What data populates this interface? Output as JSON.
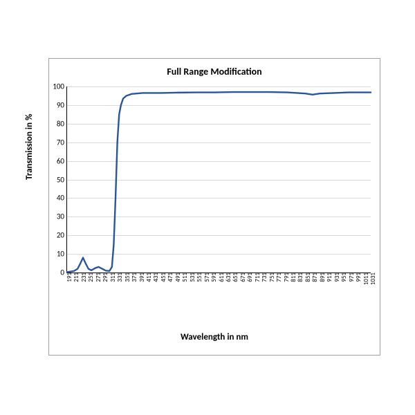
{
  "chart": {
    "type": "line",
    "title": "Full Range Modification",
    "xlabel": "Wavelength in nm",
    "ylabel": "Transmission in %",
    "title_fontsize": 14,
    "label_fontsize": 13,
    "tick_fontsize": 11,
    "background_color": "#ffffff",
    "border_color": "#a0a0a0",
    "axis_color": "#000000",
    "grid_color": "#d9d9d9",
    "line_color": "#2a5699",
    "line_width": 2.4,
    "y": {
      "min": 0,
      "max": 100,
      "ticks": [
        0,
        10,
        20,
        30,
        40,
        50,
        60,
        70,
        80,
        90,
        100
      ]
    },
    "x": {
      "min": 191,
      "max": 1031,
      "ticks": [
        191,
        211,
        231,
        251,
        271,
        291,
        311,
        331,
        351,
        371,
        391,
        411,
        431,
        451,
        471,
        491,
        511,
        531,
        551,
        571,
        591,
        611,
        631,
        651,
        671,
        691,
        711,
        731,
        751,
        771,
        791,
        811,
        831,
        851,
        871,
        891,
        911,
        931,
        951,
        971,
        991,
        1011,
        1031
      ]
    },
    "series": [
      {
        "x": 191,
        "y": 0.2
      },
      {
        "x": 200,
        "y": 0.5
      },
      {
        "x": 210,
        "y": 0.8
      },
      {
        "x": 220,
        "y": 2.0
      },
      {
        "x": 228,
        "y": 5.0
      },
      {
        "x": 235,
        "y": 8.0
      },
      {
        "x": 242,
        "y": 5.0
      },
      {
        "x": 250,
        "y": 2.0
      },
      {
        "x": 258,
        "y": 1.2
      },
      {
        "x": 268,
        "y": 2.3
      },
      {
        "x": 278,
        "y": 3.0
      },
      {
        "x": 288,
        "y": 2.0
      },
      {
        "x": 298,
        "y": 1.0
      },
      {
        "x": 308,
        "y": 0.8
      },
      {
        "x": 315,
        "y": 3.0
      },
      {
        "x": 320,
        "y": 15.0
      },
      {
        "x": 325,
        "y": 40.0
      },
      {
        "x": 330,
        "y": 70.0
      },
      {
        "x": 335,
        "y": 85.0
      },
      {
        "x": 340,
        "y": 90.0
      },
      {
        "x": 346,
        "y": 93.5
      },
      {
        "x": 355,
        "y": 95.0
      },
      {
        "x": 370,
        "y": 96.0
      },
      {
        "x": 400,
        "y": 96.5
      },
      {
        "x": 450,
        "y": 96.5
      },
      {
        "x": 500,
        "y": 96.7
      },
      {
        "x": 550,
        "y": 96.8
      },
      {
        "x": 600,
        "y": 96.8
      },
      {
        "x": 650,
        "y": 97.0
      },
      {
        "x": 700,
        "y": 97.0
      },
      {
        "x": 750,
        "y": 97.0
      },
      {
        "x": 800,
        "y": 96.8
      },
      {
        "x": 850,
        "y": 96.2
      },
      {
        "x": 870,
        "y": 95.6
      },
      {
        "x": 890,
        "y": 96.2
      },
      {
        "x": 930,
        "y": 96.5
      },
      {
        "x": 970,
        "y": 96.8
      },
      {
        "x": 1000,
        "y": 96.8
      },
      {
        "x": 1031,
        "y": 96.8
      }
    ]
  }
}
